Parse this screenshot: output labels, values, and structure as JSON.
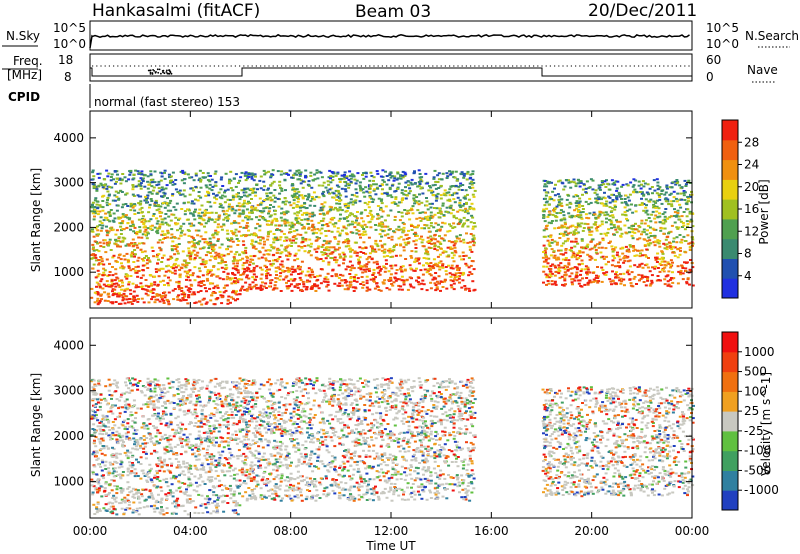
{
  "header": {
    "station": "Hankasalmi (fitACF)",
    "beam": "Beam 03",
    "date": "20/Dec/2011"
  },
  "strip": {
    "nsky_label": "N.Sky",
    "nsky_tick_top": "10^5",
    "nsky_tick_bottom": "10^0",
    "nsearch_label": "N.Search",
    "nsearch_tick_top": "10^5",
    "nsearch_tick_bottom": "10^0",
    "freq_label_1": "Freq.",
    "freq_label_2": "[MHz]",
    "freq_tick_top": "18",
    "freq_tick_bottom": "8",
    "nave_label": "Nave",
    "nave_tick_top": "60",
    "nave_tick_bottom": "0",
    "cpid_label": "CPID",
    "cpid_text": "normal (fast stereo) 153"
  },
  "chart_data": [
    {
      "type": "heatmap",
      "name": "power",
      "ylabel": "Slant Range [km]",
      "xlabel": "",
      "xlim": [
        "00:00",
        "00:00"
      ],
      "ylim": [
        200,
        4600
      ],
      "yticks": [
        1000,
        2000,
        3000,
        4000
      ],
      "colorbar": {
        "label": "Power [dB]",
        "ticks": [
          "28",
          "24",
          "20",
          "16",
          "12",
          "8",
          "4"
        ],
        "colors": [
          "#2030e0",
          "#2050b0",
          "#3a8a70",
          "#50a050",
          "#a0c020",
          "#e8d010",
          "#f09010",
          "#f06010",
          "#f02010"
        ]
      },
      "echo_regions": [
        {
          "t_start": 0.0,
          "t_end": 6.0,
          "r_low": 300,
          "r_high": 3300
        },
        {
          "t_start": 6.0,
          "t_end": 15.3,
          "r_low": 600,
          "r_high": 3300
        },
        {
          "t_start": 18.0,
          "t_end": 24.0,
          "r_low": 700,
          "r_high": 3100
        }
      ]
    },
    {
      "type": "heatmap",
      "name": "velocity",
      "ylabel": "Slant Range [km]",
      "xlabel": "Time UT",
      "xticks": [
        "00:00",
        "04:00",
        "08:00",
        "12:00",
        "16:00",
        "20:00",
        "00:00"
      ],
      "ylim": [
        200,
        4600
      ],
      "yticks": [
        1000,
        2000,
        3000,
        4000
      ],
      "colorbar": {
        "label": "Velocity [m s^-1]",
        "ticks": [
          "1000",
          "500",
          "100",
          "25",
          "-25",
          "-100",
          "-500",
          "-1000"
        ],
        "colors": [
          "#2040c0",
          "#3080a0",
          "#40a060",
          "#60c040",
          "#c8c8c0",
          "#f0a020",
          "#f07010",
          "#f04010",
          "#f01010"
        ]
      },
      "echo_regions": [
        {
          "t_start": 0.0,
          "t_end": 6.0,
          "r_low": 300,
          "r_high": 3300
        },
        {
          "t_start": 6.0,
          "t_end": 15.3,
          "r_low": 600,
          "r_high": 3300
        },
        {
          "t_start": 18.0,
          "t_end": 24.0,
          "r_low": 700,
          "r_high": 3100
        }
      ]
    }
  ]
}
